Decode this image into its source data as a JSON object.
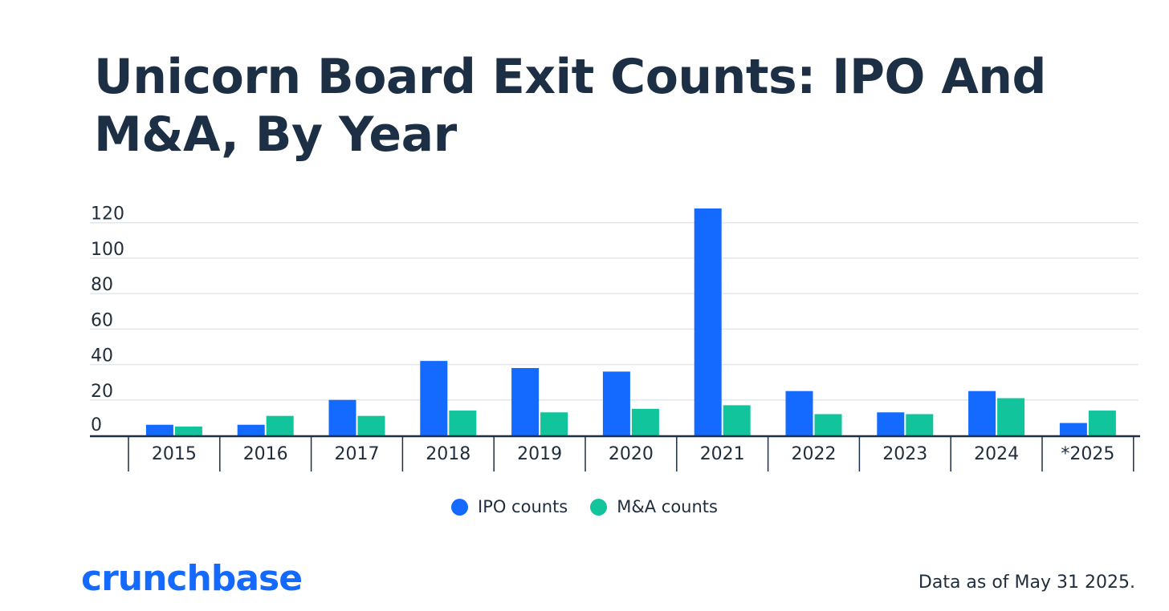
{
  "chart_data": {
    "type": "bar",
    "title": "Unicorn Board Exit Counts: IPO And M&A, By Year",
    "categories": [
      "2015",
      "2016",
      "2017",
      "2018",
      "2019",
      "2020",
      "2021",
      "2022",
      "2023",
      "2024",
      "*2025"
    ],
    "series": [
      {
        "name": "IPO counts",
        "color": "#146aff",
        "values": [
          6,
          6,
          20,
          42,
          38,
          36,
          128,
          25,
          13,
          25,
          7
        ]
      },
      {
        "name": "M&A counts",
        "color": "#12c49b",
        "values": [
          5,
          11,
          11,
          14,
          13,
          15,
          17,
          12,
          12,
          21,
          14
        ]
      }
    ],
    "yticks": [
      "0",
      "20",
      "40",
      "60",
      "80",
      "100",
      "120"
    ],
    "ylim": [
      0,
      128
    ],
    "grid": true,
    "legend_position": "bottom-center"
  },
  "logo_text": "crunchbase",
  "footnote": "Data as of May 31 2025."
}
